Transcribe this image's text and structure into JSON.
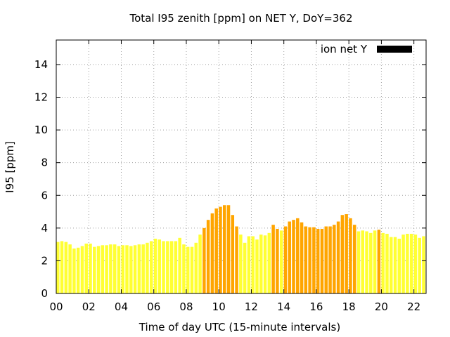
{
  "chart_data": {
    "type": "bar",
    "title": "Total I95 zenith [ppm] on NET Y, DoY=362",
    "xlabel": "Time of day UTC (15-minute intervals)",
    "ylabel": "I95 [ppm]",
    "xlim": [
      0,
      22.75
    ],
    "ylim": [
      0,
      15.5
    ],
    "x_ticks": [
      0,
      2,
      4,
      6,
      8,
      10,
      12,
      14,
      16,
      18,
      20,
      22
    ],
    "x_tick_labels": [
      "00",
      "02",
      "04",
      "06",
      "08",
      "10",
      "12",
      "14",
      "16",
      "18",
      "20",
      "22"
    ],
    "y_ticks": [
      0,
      2,
      4,
      6,
      8,
      10,
      12,
      14
    ],
    "y_tick_labels": [
      "0",
      "2",
      "4",
      "6",
      "8",
      "10",
      "12",
      "14"
    ],
    "grid": true,
    "legend": {
      "position": "top-right",
      "entries": [
        {
          "label": "ion net Y",
          "color": "#000000"
        }
      ]
    },
    "colors": {
      "normal": "#ffff33",
      "elevated": "#ffa500"
    },
    "threshold": 3.9,
    "x": [
      0.0,
      0.25,
      0.5,
      0.75,
      1.0,
      1.25,
      1.5,
      1.75,
      2.0,
      2.25,
      2.5,
      2.75,
      3.0,
      3.25,
      3.5,
      3.75,
      4.0,
      4.25,
      4.5,
      4.75,
      5.0,
      5.25,
      5.5,
      5.75,
      6.0,
      6.25,
      6.5,
      6.75,
      7.0,
      7.25,
      7.5,
      7.75,
      8.0,
      8.25,
      8.5,
      8.75,
      9.0,
      9.25,
      9.5,
      9.75,
      10.0,
      10.25,
      10.5,
      10.75,
      11.0,
      11.25,
      11.5,
      11.75,
      12.0,
      12.25,
      12.5,
      12.75,
      13.0,
      13.25,
      13.5,
      13.75,
      14.0,
      14.25,
      14.5,
      14.75,
      15.0,
      15.25,
      15.5,
      15.75,
      16.0,
      16.25,
      16.5,
      16.75,
      17.0,
      17.25,
      17.5,
      17.75,
      18.0,
      18.25,
      18.5,
      18.75,
      19.0,
      19.25,
      19.5,
      19.75,
      20.0,
      20.25,
      20.5,
      20.75,
      21.0,
      21.25,
      21.5,
      21.75,
      22.0,
      22.25,
      22.5
    ],
    "values": [
      3.15,
      3.2,
      3.15,
      3.0,
      2.75,
      2.8,
      2.9,
      3.05,
      3.05,
      2.85,
      2.9,
      2.95,
      2.95,
      3.0,
      3.0,
      2.9,
      2.95,
      2.95,
      2.9,
      2.95,
      3.0,
      3.0,
      3.1,
      3.2,
      3.35,
      3.3,
      3.2,
      3.2,
      3.2,
      3.2,
      3.4,
      3.0,
      2.85,
      2.85,
      3.1,
      3.6,
      4.0,
      4.5,
      4.9,
      5.2,
      5.3,
      5.4,
      5.4,
      4.8,
      4.1,
      3.6,
      3.1,
      3.5,
      3.5,
      3.3,
      3.6,
      3.55,
      3.7,
      4.2,
      3.95,
      3.85,
      4.1,
      4.4,
      4.5,
      4.6,
      4.35,
      4.1,
      4.05,
      4.05,
      3.95,
      3.95,
      4.1,
      4.1,
      4.2,
      4.4,
      4.8,
      4.85,
      4.6,
      4.2,
      3.8,
      3.85,
      3.8,
      3.7,
      3.85,
      3.9,
      3.7,
      3.65,
      3.45,
      3.45,
      3.35,
      3.6,
      3.65,
      3.65,
      3.6,
      3.4,
      3.5
    ]
  }
}
